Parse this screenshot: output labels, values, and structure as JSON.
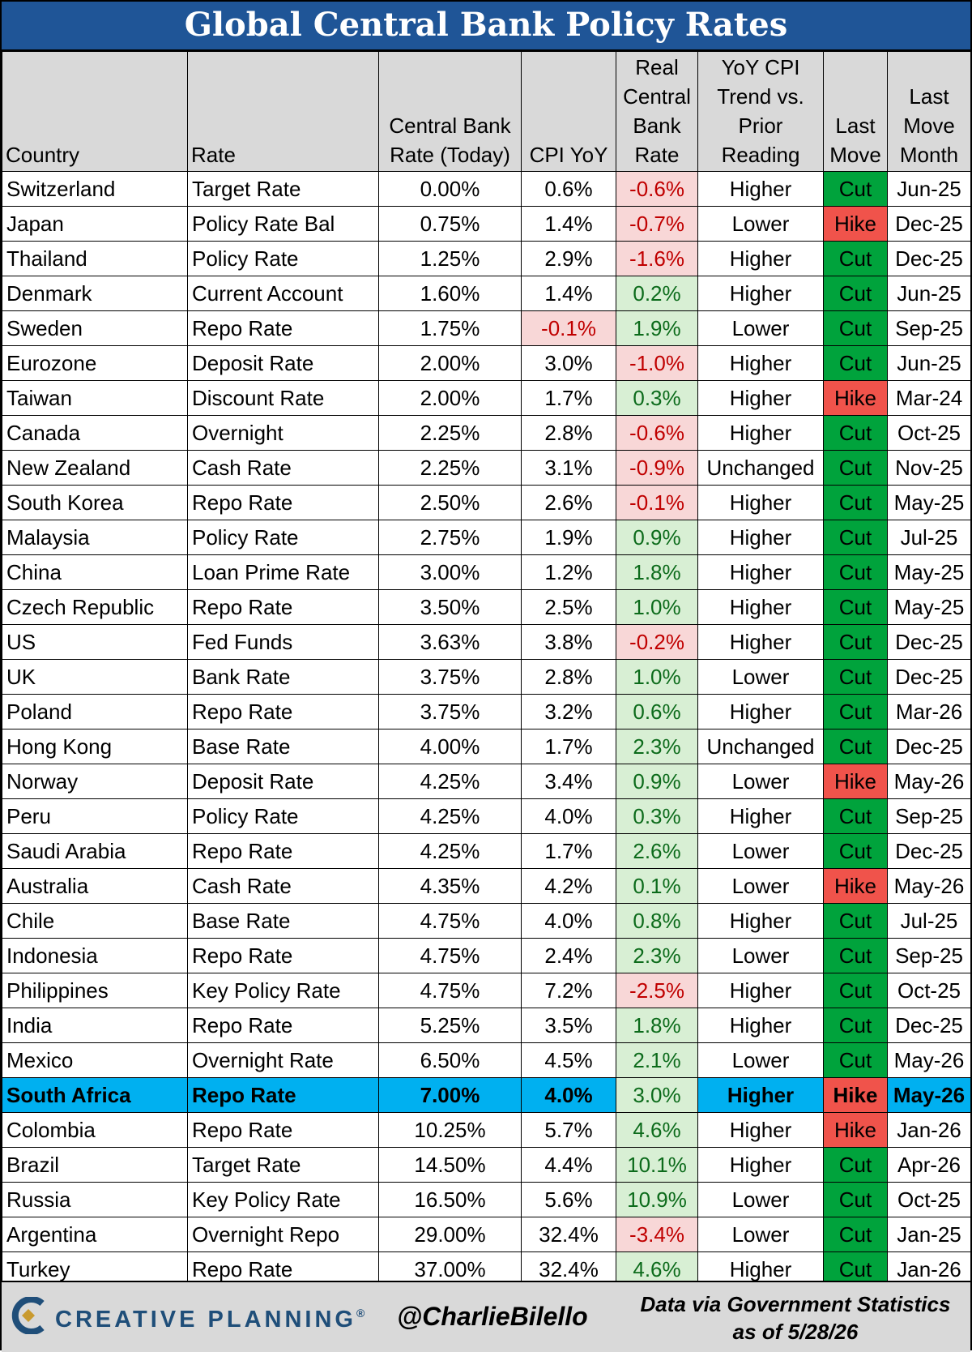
{
  "title": "Global Central Bank Policy Rates",
  "columns": [
    "Country",
    "Rate",
    "Central Bank\nRate (Today)",
    "CPI YoY",
    "Real\nCentral\nBank\nRate",
    "YoY CPI\nTrend vs.\nPrior\nReading",
    "Last\nMove",
    "Last\nMove\nMonth"
  ],
  "chart_data": {
    "type": "table",
    "title": "Global Central Bank Policy Rates",
    "highlighted_row": "South Africa",
    "rows": [
      [
        "Switzerland",
        "Target Rate",
        "0.00%",
        "0.6%",
        "-0.6%",
        "Higher",
        "Cut",
        "Jun-25"
      ],
      [
        "Japan",
        "Policy Rate Bal",
        "0.75%",
        "1.4%",
        "-0.7%",
        "Lower",
        "Hike",
        "Dec-25"
      ],
      [
        "Thailand",
        "Policy Rate",
        "1.25%",
        "2.9%",
        "-1.6%",
        "Higher",
        "Cut",
        "Dec-25"
      ],
      [
        "Denmark",
        "Current Account",
        "1.60%",
        "1.4%",
        "0.2%",
        "Higher",
        "Cut",
        "Jun-25"
      ],
      [
        "Sweden",
        "Repo Rate",
        "1.75%",
        "-0.1%",
        "1.9%",
        "Lower",
        "Cut",
        "Sep-25"
      ],
      [
        "Eurozone",
        "Deposit Rate",
        "2.00%",
        "3.0%",
        "-1.0%",
        "Higher",
        "Cut",
        "Jun-25"
      ],
      [
        "Taiwan",
        "Discount Rate",
        "2.00%",
        "1.7%",
        "0.3%",
        "Higher",
        "Hike",
        "Mar-24"
      ],
      [
        "Canada",
        "Overnight",
        "2.25%",
        "2.8%",
        "-0.6%",
        "Higher",
        "Cut",
        "Oct-25"
      ],
      [
        "New Zealand",
        "Cash Rate",
        "2.25%",
        "3.1%",
        "-0.9%",
        "Unchanged",
        "Cut",
        "Nov-25"
      ],
      [
        "South Korea",
        "Repo Rate",
        "2.50%",
        "2.6%",
        "-0.1%",
        "Higher",
        "Cut",
        "May-25"
      ],
      [
        "Malaysia",
        "Policy Rate",
        "2.75%",
        "1.9%",
        "0.9%",
        "Higher",
        "Cut",
        "Jul-25"
      ],
      [
        "China",
        "Loan Prime Rate",
        "3.00%",
        "1.2%",
        "1.8%",
        "Higher",
        "Cut",
        "May-25"
      ],
      [
        "Czech Republic",
        "Repo Rate",
        "3.50%",
        "2.5%",
        "1.0%",
        "Higher",
        "Cut",
        "May-25"
      ],
      [
        "US",
        "Fed Funds",
        "3.63%",
        "3.8%",
        "-0.2%",
        "Higher",
        "Cut",
        "Dec-25"
      ],
      [
        "UK",
        "Bank Rate",
        "3.75%",
        "2.8%",
        "1.0%",
        "Lower",
        "Cut",
        "Dec-25"
      ],
      [
        "Poland",
        "Repo Rate",
        "3.75%",
        "3.2%",
        "0.6%",
        "Higher",
        "Cut",
        "Mar-26"
      ],
      [
        "Hong Kong",
        "Base Rate",
        "4.00%",
        "1.7%",
        "2.3%",
        "Unchanged",
        "Cut",
        "Dec-25"
      ],
      [
        "Norway",
        "Deposit Rate",
        "4.25%",
        "3.4%",
        "0.9%",
        "Lower",
        "Hike",
        "May-26"
      ],
      [
        "Peru",
        "Policy Rate",
        "4.25%",
        "4.0%",
        "0.3%",
        "Higher",
        "Cut",
        "Sep-25"
      ],
      [
        "Saudi Arabia",
        "Repo Rate",
        "4.25%",
        "1.7%",
        "2.6%",
        "Lower",
        "Cut",
        "Dec-25"
      ],
      [
        "Australia",
        "Cash Rate",
        "4.35%",
        "4.2%",
        "0.1%",
        "Lower",
        "Hike",
        "May-26"
      ],
      [
        "Chile",
        "Base Rate",
        "4.75%",
        "4.0%",
        "0.8%",
        "Higher",
        "Cut",
        "Jul-25"
      ],
      [
        "Indonesia",
        "Repo Rate",
        "4.75%",
        "2.4%",
        "2.3%",
        "Lower",
        "Cut",
        "Sep-25"
      ],
      [
        "Philippines",
        "Key Policy Rate",
        "4.75%",
        "7.2%",
        "-2.5%",
        "Higher",
        "Cut",
        "Oct-25"
      ],
      [
        "India",
        "Repo Rate",
        "5.25%",
        "3.5%",
        "1.8%",
        "Higher",
        "Cut",
        "Dec-25"
      ],
      [
        "Mexico",
        "Overnight Rate",
        "6.50%",
        "4.5%",
        "2.1%",
        "Lower",
        "Cut",
        "May-26"
      ],
      [
        "South Africa",
        "Repo Rate",
        "7.00%",
        "4.0%",
        "3.0%",
        "Higher",
        "Hike",
        "May-26"
      ],
      [
        "Colombia",
        "Repo Rate",
        "10.25%",
        "5.7%",
        "4.6%",
        "Higher",
        "Hike",
        "Jan-26"
      ],
      [
        "Brazil",
        "Target Rate",
        "14.50%",
        "4.4%",
        "10.1%",
        "Higher",
        "Cut",
        "Apr-26"
      ],
      [
        "Russia",
        "Key Policy Rate",
        "16.50%",
        "5.6%",
        "10.9%",
        "Lower",
        "Cut",
        "Oct-25"
      ],
      [
        "Argentina",
        "Overnight Repo",
        "29.00%",
        "32.4%",
        "-3.4%",
        "Lower",
        "Cut",
        "Jan-25"
      ],
      [
        "Turkey",
        "Repo Rate",
        "37.00%",
        "32.4%",
        "4.6%",
        "Higher",
        "Cut",
        "Jan-26"
      ]
    ]
  },
  "footer": {
    "brand": "CREATIVE PLANNING",
    "brand_mark": "®",
    "handle": "@CharlieBilello",
    "source_line1": "Data via Government Statistics",
    "source_line2": "as of 5/28/26"
  },
  "colors": {
    "title_bg": "#1f5597",
    "header_bg": "#d9d9d9",
    "negative_bg": "#f8d7d7",
    "negative_text": "#c00000",
    "positive_bg": "#d8efd4",
    "positive_text": "#0c6b1b",
    "cut": "#00a33c",
    "hike": "#f0534b",
    "highlight": "#00b0f0"
  }
}
